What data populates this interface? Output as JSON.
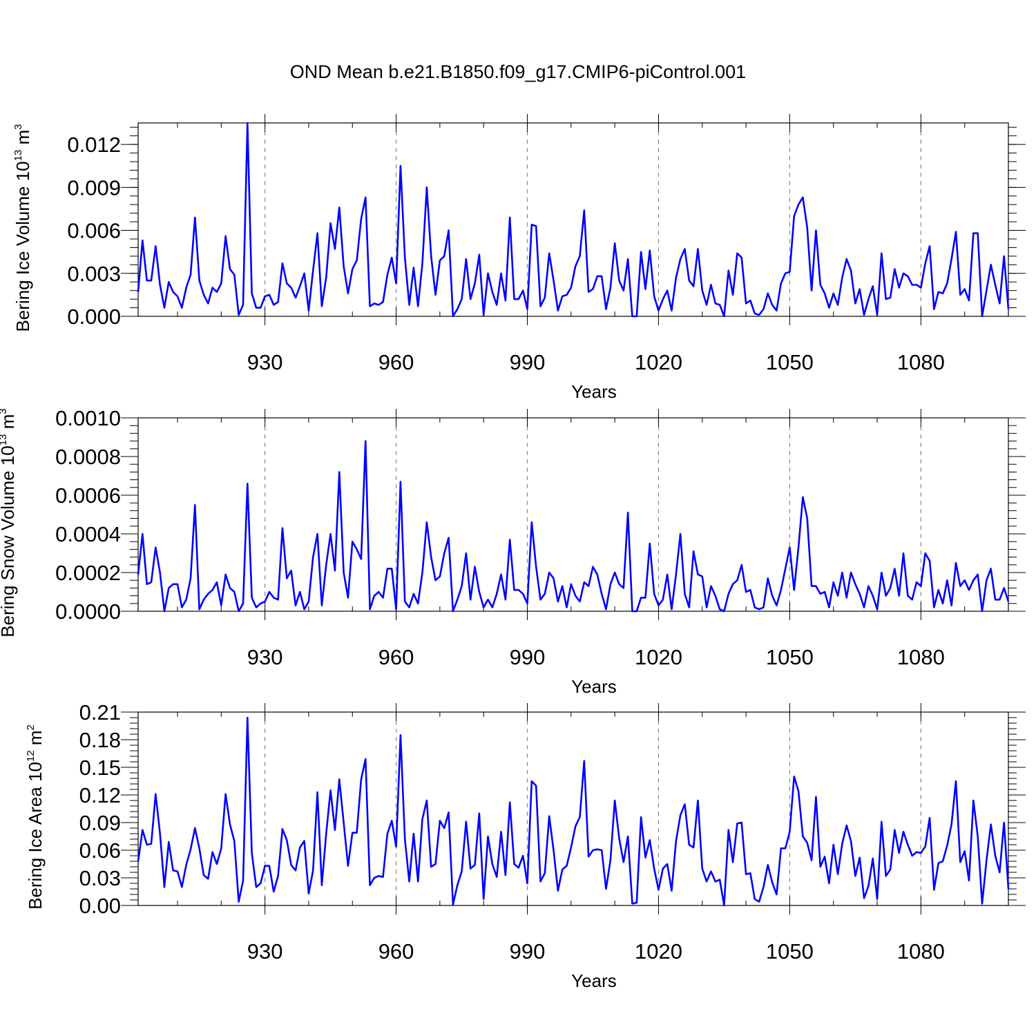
{
  "title": "OND Mean b.e21.B1850.f09_g17.CMIP6-piControl.001",
  "colors": {
    "line": "#0000ff",
    "grid": "#888888",
    "axis": "#000000"
  },
  "chart_data": [
    {
      "type": "line",
      "name": "ice-volume",
      "ylabel": "Bering Ice Volume 10",
      "ylabel_exp": "13",
      "ylabel_unit": "m",
      "ylabel_unit_exp": "3",
      "xlabel": "Years",
      "xlim": [
        901,
        1100
      ],
      "ylim": [
        0,
        0.0135
      ],
      "xticks": [
        930,
        960,
        990,
        1020,
        1050,
        1080
      ],
      "xtick_labels": [
        "930",
        "960",
        "990",
        "1020",
        "1050",
        "1080"
      ],
      "yticks": [
        0,
        0.003,
        0.006,
        0.009,
        0.012
      ],
      "ytick_labels": [
        "0.000",
        "0.003",
        "0.006",
        "0.009",
        "0.012"
      ],
      "x_start": 901,
      "values": [
        0.0017,
        0.0053,
        0.0025,
        0.0025,
        0.0049,
        0.0022,
        0.0006,
        0.0024,
        0.0017,
        0.0014,
        0.0006,
        0.002,
        0.0029,
        0.0069,
        0.0025,
        0.0015,
        0.0009,
        0.002,
        0.0017,
        0.0023,
        0.0056,
        0.0033,
        0.0029,
        0.0001,
        0.0008,
        0.0135,
        0.0016,
        0.0006,
        0.0006,
        0.0014,
        0.0015,
        0.0008,
        0.001,
        0.0037,
        0.0023,
        0.002,
        0.0013,
        0.0021,
        0.003,
        0.0004,
        0.0032,
        0.0058,
        0.0007,
        0.0027,
        0.0065,
        0.0047,
        0.0076,
        0.0035,
        0.0016,
        0.0033,
        0.0039,
        0.0068,
        0.0083,
        0.0007,
        0.0009,
        0.0008,
        0.001,
        0.0029,
        0.0041,
        0.0023,
        0.0105,
        0.0041,
        0.0008,
        0.0034,
        0.0007,
        0.0037,
        0.009,
        0.0042,
        0.0015,
        0.0039,
        0.0042,
        0.006,
        0.0,
        0.0005,
        0.0012,
        0.004,
        0.0012,
        0.0023,
        0.0043,
        0.0001,
        0.003,
        0.0017,
        0.0008,
        0.003,
        0.0011,
        0.0069,
        0.0012,
        0.0012,
        0.0018,
        0.0005,
        0.0064,
        0.0063,
        0.0007,
        0.0013,
        0.0044,
        0.0025,
        0.0004,
        0.0014,
        0.0015,
        0.002,
        0.0035,
        0.0042,
        0.0074,
        0.0017,
        0.0019,
        0.0028,
        0.0028,
        0.0005,
        0.002,
        0.0051,
        0.0025,
        0.0018,
        0.004,
        0.0,
        0.0,
        0.0045,
        0.0019,
        0.0046,
        0.0014,
        0.0004,
        0.0012,
        0.0018,
        0.0004,
        0.0027,
        0.004,
        0.0047,
        0.0025,
        0.0021,
        0.0047,
        0.0018,
        0.0008,
        0.0022,
        0.0009,
        0.0008,
        0.0,
        0.0032,
        0.0015,
        0.0044,
        0.0041,
        0.0009,
        0.0011,
        0.0002,
        0.0001,
        0.0005,
        0.0016,
        0.0008,
        0.0004,
        0.0023,
        0.003,
        0.0031,
        0.007,
        0.0078,
        0.0083,
        0.0062,
        0.0018,
        0.006,
        0.0022,
        0.0016,
        0.0006,
        0.0016,
        0.0008,
        0.0027,
        0.004,
        0.0032,
        0.0009,
        0.0019,
        0.0001,
        0.0012,
        0.0021,
        0.0001,
        0.0044,
        0.0012,
        0.0013,
        0.0033,
        0.002,
        0.003,
        0.0028,
        0.0022,
        0.0022,
        0.002,
        0.0037,
        0.0049,
        0.0005,
        0.0017,
        0.0016,
        0.0023,
        0.004,
        0.0059,
        0.0015,
        0.0019,
        0.0011,
        0.0058,
        0.0058,
        0.0,
        0.0018,
        0.0036,
        0.0022,
        0.0009,
        0.0042,
        0.0005
      ]
    },
    {
      "type": "line",
      "name": "snow-volume",
      "ylabel": "Bering Snow Volume 10",
      "ylabel_exp": "13",
      "ylabel_unit": "m",
      "ylabel_unit_exp": "3",
      "xlabel": "Years",
      "xlim": [
        901,
        1100
      ],
      "ylim": [
        0,
        0.001
      ],
      "xticks": [
        930,
        960,
        990,
        1020,
        1050,
        1080
      ],
      "xtick_labels": [
        "930",
        "960",
        "990",
        "1020",
        "1050",
        "1080"
      ],
      "yticks": [
        0,
        0.0002,
        0.0004,
        0.0006,
        0.0008,
        0.001
      ],
      "ytick_labels": [
        "0.0000",
        "0.0002",
        "0.0004",
        "0.0006",
        "0.0008",
        "0.0010"
      ],
      "x_start": 901,
      "values": [
        0.00019,
        0.0004,
        0.00014,
        0.00015,
        0.00033,
        0.0002,
        0.0,
        0.00012,
        0.00014,
        0.00014,
        2e-05,
        6e-05,
        0.00017,
        0.00055,
        1e-05,
        6e-05,
        9e-05,
        0.00011,
        0.00015,
        3e-05,
        0.00019,
        0.00012,
        0.0001,
        0.0,
        4e-05,
        0.00066,
        7e-05,
        2e-05,
        4e-05,
        5e-05,
        0.0001,
        7e-05,
        6e-05,
        0.00043,
        0.00017,
        0.00021,
        3e-05,
        0.0001,
        1e-05,
        5e-05,
        0.00028,
        0.0004,
        3e-05,
        0.00024,
        0.0004,
        0.00021,
        0.00072,
        0.0002,
        7e-05,
        0.00036,
        0.00032,
        0.00027,
        0.00088,
        1e-05,
        8e-05,
        0.0001,
        7e-05,
        0.00022,
        0.00022,
        1e-05,
        0.00067,
        5e-05,
        2e-05,
        9e-05,
        4e-05,
        0.0002,
        0.00046,
        0.00028,
        0.00016,
        0.00018,
        0.0003,
        0.00038,
        0.0,
        6e-05,
        0.00013,
        0.0003,
        6e-05,
        0.00023,
        0.0001,
        2e-05,
        6e-05,
        2e-05,
        9e-05,
        0.00019,
        6e-05,
        0.00037,
        0.00011,
        0.00011,
        9e-05,
        4e-05,
        0.00046,
        0.00023,
        6e-05,
        9e-05,
        0.0002,
        0.00017,
        5e-05,
        0.00013,
        2e-05,
        0.00014,
        8e-05,
        5e-05,
        0.00015,
        0.00013,
        0.00023,
        0.00019,
        9e-05,
        1e-05,
        0.00014,
        0.0002,
        0.00014,
        0.00012,
        0.00051,
        0.0,
        0.0,
        7e-05,
        7e-05,
        0.00035,
        9e-05,
        3e-05,
        6e-05,
        0.00019,
        1e-05,
        0.00019,
        0.0004,
        9e-05,
        2e-05,
        0.00031,
        0.00019,
        0.00018,
        2e-05,
        0.00013,
        8e-05,
        1e-05,
        0.0,
        9e-05,
        0.00014,
        0.00016,
        0.00024,
        0.0001,
        0.00011,
        2e-05,
        1e-05,
        2e-05,
        0.00017,
        8e-05,
        3e-05,
        0.00011,
        0.00022,
        0.00033,
        0.00011,
        0.00033,
        0.00059,
        0.00048,
        0.00013,
        0.00013,
        9e-05,
        0.0001,
        2e-05,
        0.00015,
        8e-05,
        0.0002,
        7e-05,
        0.0002,
        0.00014,
        9e-05,
        2e-05,
        0.00013,
        8e-05,
        1e-05,
        0.0002,
        8e-05,
        0.00012,
        0.00022,
        8e-05,
        0.0003,
        8e-05,
        6e-05,
        0.00015,
        0.00013,
        0.0003,
        0.00026,
        2e-05,
        0.00011,
        4e-05,
        0.00016,
        3e-05,
        0.00025,
        0.00013,
        0.00016,
        0.00011,
        0.00016,
        0.00019,
        0.0,
        0.00016,
        0.00022,
        6e-05,
        6e-05,
        0.00012,
        5e-05
      ]
    },
    {
      "type": "line",
      "name": "ice-area",
      "ylabel": "Bering Ice Area 10",
      "ylabel_exp": "12",
      "ylabel_unit": "m",
      "ylabel_unit_exp": "2",
      "xlabel": "Years",
      "xlim": [
        901,
        1100
      ],
      "ylim": [
        0,
        0.21
      ],
      "xticks": [
        930,
        960,
        990,
        1020,
        1050,
        1080
      ],
      "xtick_labels": [
        "930",
        "960",
        "990",
        "1020",
        "1050",
        "1080"
      ],
      "yticks": [
        0,
        0.03,
        0.06,
        0.09,
        0.12,
        0.15,
        0.18,
        0.21
      ],
      "ytick_labels": [
        "0.00",
        "0.03",
        "0.06",
        "0.09",
        "0.12",
        "0.15",
        "0.18",
        "0.21"
      ],
      "x_start": 901,
      "values": [
        0.048,
        0.082,
        0.066,
        0.067,
        0.121,
        0.078,
        0.02,
        0.069,
        0.038,
        0.037,
        0.02,
        0.044,
        0.061,
        0.084,
        0.062,
        0.033,
        0.029,
        0.058,
        0.045,
        0.062,
        0.121,
        0.088,
        0.07,
        0.004,
        0.027,
        0.204,
        0.057,
        0.02,
        0.024,
        0.043,
        0.043,
        0.015,
        0.032,
        0.083,
        0.071,
        0.044,
        0.038,
        0.063,
        0.07,
        0.013,
        0.038,
        0.123,
        0.022,
        0.078,
        0.125,
        0.082,
        0.137,
        0.09,
        0.043,
        0.079,
        0.079,
        0.137,
        0.159,
        0.022,
        0.03,
        0.032,
        0.031,
        0.078,
        0.092,
        0.064,
        0.185,
        0.072,
        0.026,
        0.078,
        0.026,
        0.094,
        0.114,
        0.042,
        0.045,
        0.092,
        0.084,
        0.101,
        0.001,
        0.022,
        0.037,
        0.091,
        0.04,
        0.044,
        0.1,
        0.007,
        0.075,
        0.045,
        0.031,
        0.08,
        0.033,
        0.112,
        0.045,
        0.041,
        0.054,
        0.024,
        0.135,
        0.13,
        0.026,
        0.035,
        0.097,
        0.06,
        0.016,
        0.039,
        0.043,
        0.063,
        0.086,
        0.096,
        0.157,
        0.053,
        0.06,
        0.061,
        0.06,
        0.018,
        0.049,
        0.114,
        0.073,
        0.047,
        0.075,
        0.002,
        0.003,
        0.096,
        0.052,
        0.071,
        0.04,
        0.017,
        0.04,
        0.045,
        0.016,
        0.07,
        0.098,
        0.11,
        0.066,
        0.063,
        0.114,
        0.04,
        0.026,
        0.037,
        0.026,
        0.028,
        0.0,
        0.082,
        0.047,
        0.089,
        0.09,
        0.034,
        0.035,
        0.007,
        0.004,
        0.02,
        0.044,
        0.025,
        0.012,
        0.062,
        0.062,
        0.08,
        0.14,
        0.124,
        0.075,
        0.068,
        0.049,
        0.118,
        0.042,
        0.053,
        0.024,
        0.066,
        0.034,
        0.067,
        0.087,
        0.07,
        0.032,
        0.052,
        0.008,
        0.021,
        0.051,
        0.007,
        0.091,
        0.032,
        0.039,
        0.082,
        0.057,
        0.08,
        0.066,
        0.054,
        0.058,
        0.057,
        0.064,
        0.095,
        0.017,
        0.046,
        0.048,
        0.065,
        0.088,
        0.135,
        0.047,
        0.059,
        0.027,
        0.114,
        0.075,
        0.002,
        0.049,
        0.088,
        0.054,
        0.036,
        0.09,
        0.018
      ]
    }
  ]
}
